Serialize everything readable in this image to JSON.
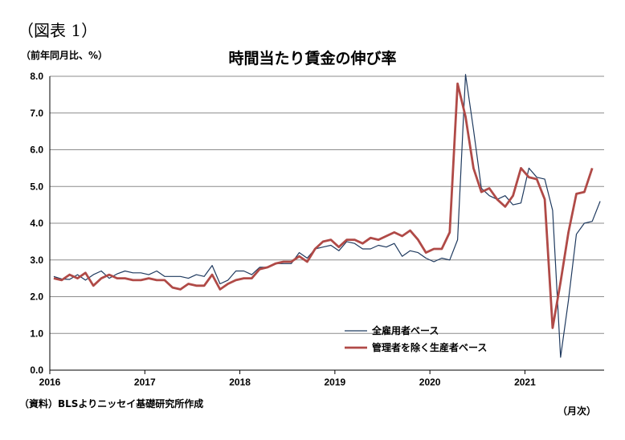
{
  "figure_label": "（図表 1）",
  "unit_label": "（前年同月比、%）",
  "source_note": "（資料）BLSよりニッセイ基礎研究所作成",
  "period_label": "（月次）",
  "chart_data": {
    "type": "line",
    "title": "時間当たり賃金の伸び率",
    "ylim": [
      0,
      8
    ],
    "yticks": [
      "0.0",
      "1.0",
      "2.0",
      "3.0",
      "4.0",
      "5.0",
      "6.0",
      "7.0",
      "8.0"
    ],
    "xtick_labels": [
      "2016",
      "2017",
      "2018",
      "2019",
      "2020",
      "2021"
    ],
    "grid": true,
    "legend_position": "bottom-right",
    "x_start": "2016-01",
    "series": [
      {
        "name": "全雇用者ベース",
        "color": "#1f3a5f",
        "values": [
          2.55,
          2.48,
          2.47,
          2.6,
          2.45,
          2.6,
          2.7,
          2.5,
          2.62,
          2.7,
          2.65,
          2.65,
          2.6,
          2.7,
          2.55,
          2.55,
          2.55,
          2.5,
          2.6,
          2.55,
          2.85,
          2.35,
          2.45,
          2.7,
          2.7,
          2.6,
          2.8,
          2.8,
          2.9,
          2.9,
          2.9,
          3.2,
          3.05,
          3.3,
          3.35,
          3.4,
          3.25,
          3.5,
          3.45,
          3.3,
          3.3,
          3.4,
          3.35,
          3.45,
          3.1,
          3.25,
          3.2,
          3.05,
          2.95,
          3.05,
          3.0,
          3.55,
          8.05,
          6.55,
          4.95,
          4.75,
          4.65,
          4.75,
          4.5,
          4.55,
          5.5,
          5.25,
          5.2,
          4.35,
          0.35,
          1.9,
          3.7,
          4.0,
          4.05,
          4.6
        ]
      },
      {
        "name": "管理者を除く生産者ベース",
        "color": "#b04a47",
        "values": [
          2.5,
          2.45,
          2.6,
          2.5,
          2.65,
          2.3,
          2.5,
          2.6,
          2.5,
          2.5,
          2.45,
          2.45,
          2.5,
          2.45,
          2.45,
          2.25,
          2.2,
          2.35,
          2.3,
          2.3,
          2.6,
          2.2,
          2.35,
          2.45,
          2.5,
          2.5,
          2.75,
          2.8,
          2.9,
          2.95,
          2.95,
          3.1,
          2.95,
          3.3,
          3.5,
          3.55,
          3.35,
          3.55,
          3.55,
          3.45,
          3.6,
          3.55,
          3.65,
          3.75,
          3.65,
          3.8,
          3.55,
          3.2,
          3.3,
          3.3,
          3.75,
          7.8,
          6.9,
          5.5,
          4.85,
          4.95,
          4.65,
          4.45,
          4.75,
          5.5,
          5.25,
          5.2,
          4.65,
          1.15,
          2.4,
          3.75,
          4.8,
          4.85,
          5.5
        ]
      }
    ]
  }
}
